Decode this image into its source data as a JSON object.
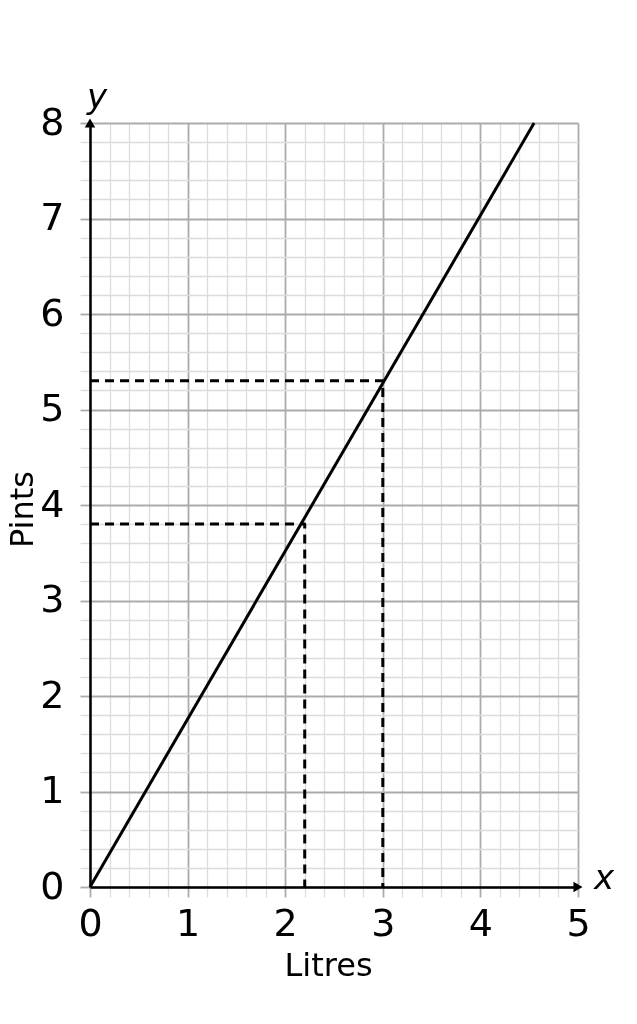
{
  "chart_data": {
    "type": "line",
    "xlabel": "Litres",
    "ylabel": "Pints",
    "xlim": [
      0,
      5
    ],
    "ylim": [
      0,
      8
    ],
    "xticks": [
      0,
      {
        "value": 0.2,
        "label": null
      },
      {
        "value": 0.4,
        "label": null
      },
      {
        "value": 0.6,
        "label": null
      },
      {
        "value": 0.8,
        "label": null
      },
      1,
      {
        "value": 1.2,
        "label": null
      },
      {
        "value": 1.4,
        "label": null
      },
      {
        "value": 1.6,
        "label": null
      },
      {
        "value": 1.8,
        "label": null
      },
      2,
      {
        "value": 2.2,
        "label": null
      },
      {
        "value": 2.4,
        "label": null
      },
      {
        "value": 2.6,
        "label": null
      },
      {
        "value": 2.8,
        "label": null
      },
      3,
      {
        "value": 3.2,
        "label": null
      },
      {
        "value": 3.4,
        "label": null
      },
      {
        "value": 3.6,
        "label": null
      },
      {
        "value": 3.8,
        "label": null
      },
      4,
      {
        "value": 4.2,
        "label": null
      },
      {
        "value": 4.4,
        "label": null
      },
      {
        "value": 4.6,
        "label": null
      },
      {
        "value": 4.8,
        "label": null
      },
      5
    ],
    "yticks": [
      0,
      {
        "value": 0.2,
        "label": null
      },
      {
        "value": 0.4,
        "label": null
      },
      {
        "value": 0.6,
        "label": null
      },
      {
        "value": 0.8,
        "label": null
      },
      1,
      {
        "value": 1.2,
        "label": null
      },
      {
        "value": 1.4,
        "label": null
      },
      {
        "value": 1.6,
        "label": null
      },
      {
        "value": 1.8,
        "label": null
      },
      2,
      {
        "value": 2.2,
        "label": null
      },
      {
        "value": 2.4,
        "label": null
      },
      {
        "value": 2.6,
        "label": null
      },
      {
        "value": 2.8,
        "label": null
      },
      3,
      {
        "value": 3.2,
        "label": null
      },
      {
        "value": 3.4,
        "label": null
      },
      {
        "value": 3.6,
        "label": null
      },
      {
        "value": 3.8,
        "label": null
      },
      4,
      {
        "value": 4.2,
        "label": null
      },
      {
        "value": 4.4,
        "label": null
      },
      {
        "value": 4.6,
        "label": null
      },
      {
        "value": 4.8,
        "label": null
      },
      5,
      {
        "value": 5.2,
        "label": null
      },
      {
        "value": 5.4,
        "label": null
      },
      {
        "value": 5.6,
        "label": null
      },
      {
        "value": 5.8,
        "label": null
      },
      6,
      {
        "value": 6.2,
        "label": null
      },
      {
        "value": 6.4,
        "label": null
      },
      {
        "value": 6.6,
        "label": null
      },
      {
        "value": 6.8,
        "label": null
      },
      7,
      {
        "value": 7.2,
        "label": null
      },
      {
        "value": 7.4,
        "label": null
      },
      {
        "value": 7.6,
        "label": null
      },
      {
        "value": 7.8,
        "label": null
      },
      8
    ],
    "grid": true,
    "series": [
      {
        "color": "#000000",
        "line_style": "solid",
        "x": [
          0,
          4.55
        ],
        "values": [
          0,
          8
        ]
      },
      {
        "color": "#000000",
        "line_style": "dashed",
        "x": [
          0,
          2.2,
          2.2
        ],
        "values": [
          3.8,
          3.8,
          0
        ]
      },
      {
        "color": "#000000",
        "line_style": "dashed",
        "x": [
          0,
          3,
          3
        ],
        "values": [
          5.3,
          5.3,
          0
        ]
      }
    ],
    "annotations": [
      "x",
      "y"
    ]
  }
}
